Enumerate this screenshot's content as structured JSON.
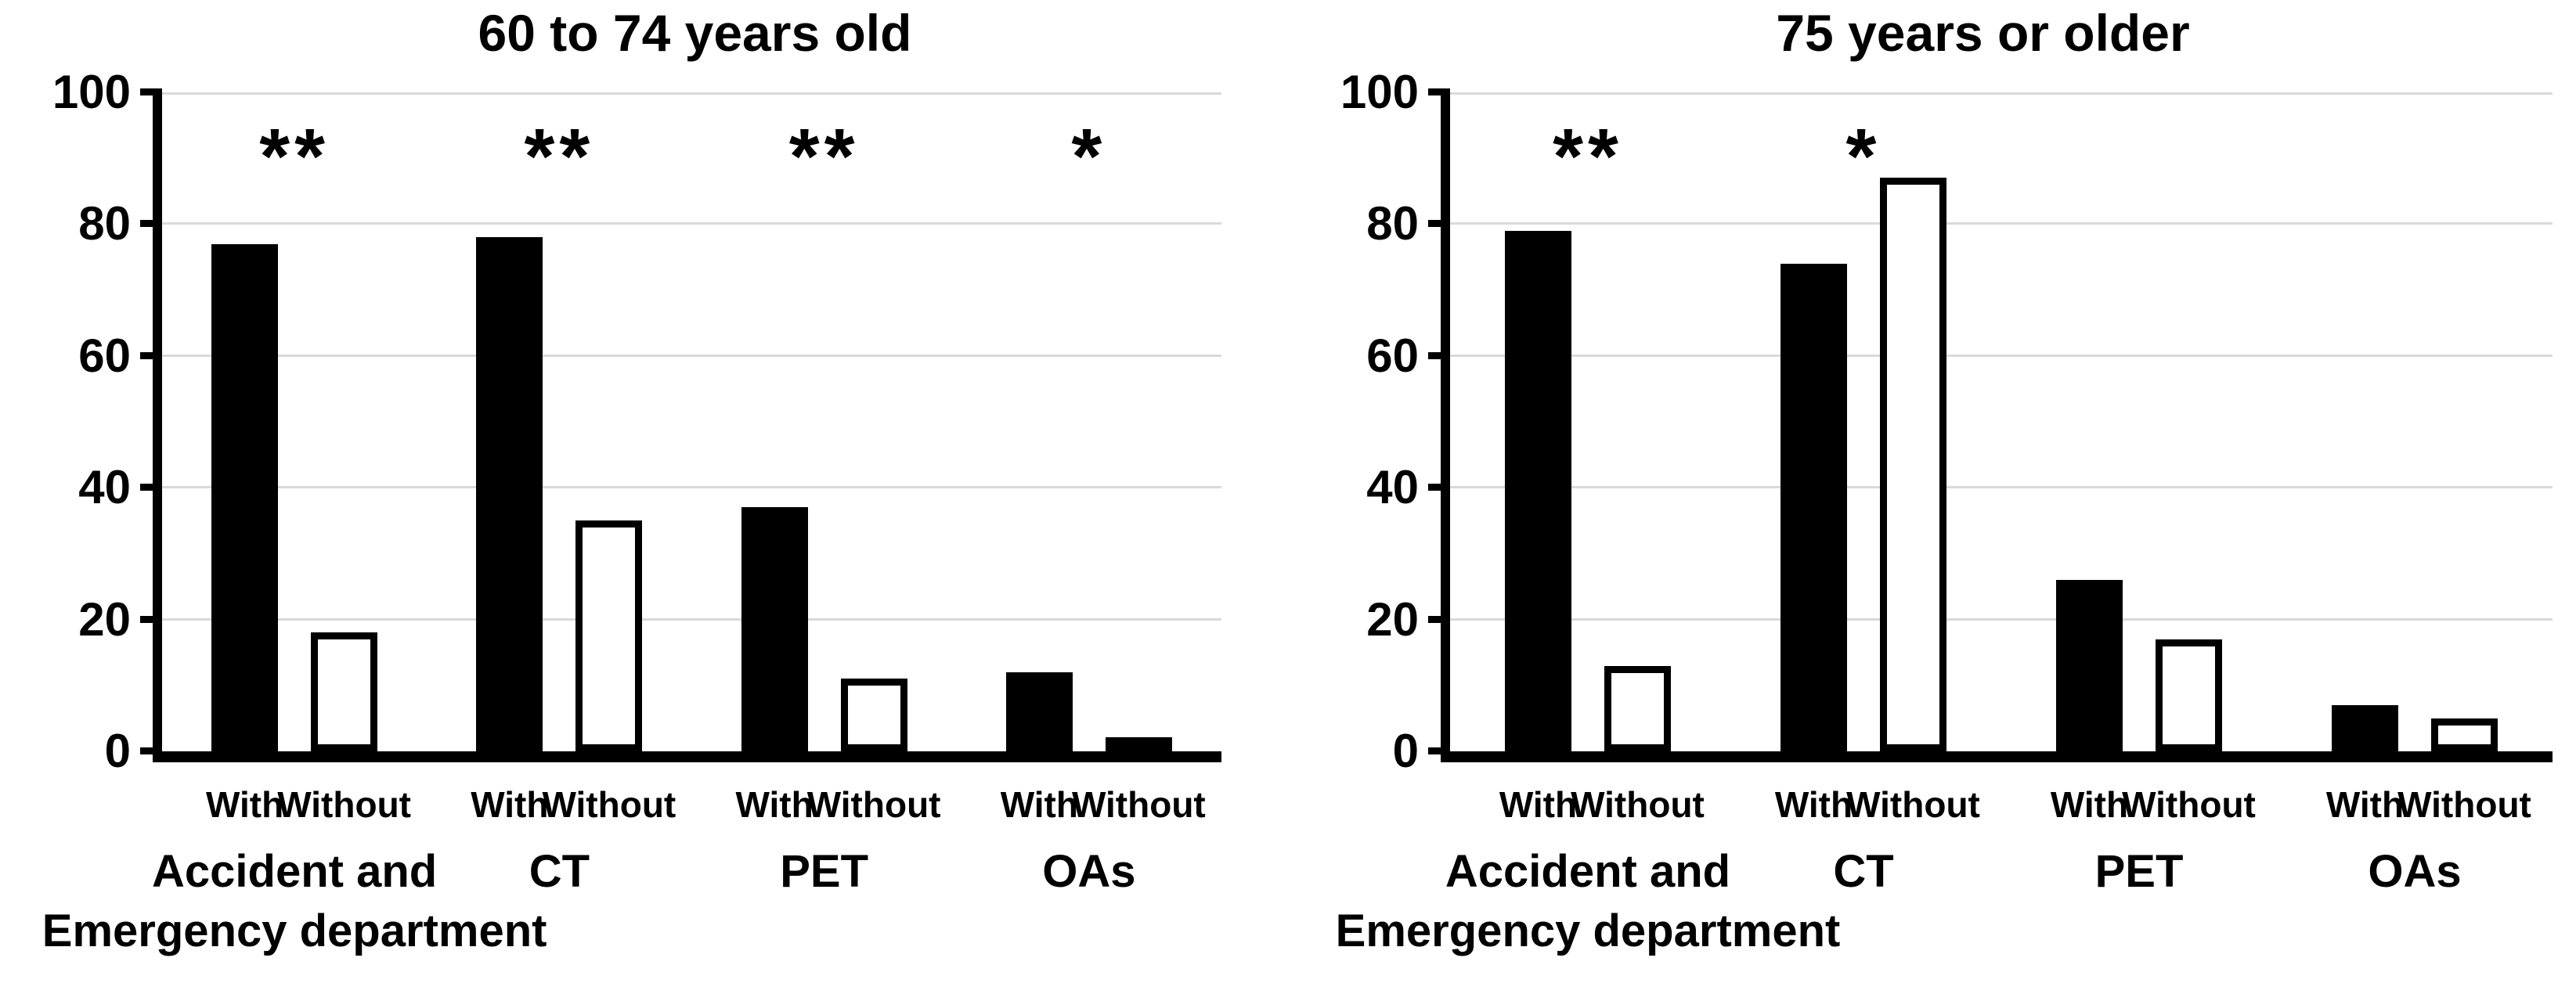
{
  "figure": {
    "background": "#ffffff",
    "text_color": "#000000",
    "gridline_color": "#d9d9d9"
  },
  "chart_data": [
    {
      "type": "bar",
      "title": "60 to 74 years old",
      "xlabel": "",
      "ylabel": "",
      "ylim": [
        0,
        100
      ],
      "yticks": [
        0,
        20,
        40,
        60,
        80,
        100
      ],
      "grid": "horizontal",
      "legend": "none",
      "categories": [
        "Accident and\nEmergency department",
        "CT",
        "PET",
        "OAs"
      ],
      "bar_tick_labels": [
        "With",
        "Without"
      ],
      "series": [
        {
          "name": "With",
          "fill": "#000000",
          "values": [
            77,
            78,
            37,
            12
          ]
        },
        {
          "name": "Without",
          "fill": "#ffffff",
          "stroke": "#000000",
          "values": [
            18,
            35,
            11,
            2
          ]
        }
      ],
      "significance": [
        "**",
        "**",
        "**",
        "*"
      ]
    },
    {
      "type": "bar",
      "title": "75 years or older",
      "xlabel": "",
      "ylabel": "",
      "ylim": [
        0,
        100
      ],
      "yticks": [
        0,
        20,
        40,
        60,
        80,
        100
      ],
      "grid": "horizontal",
      "legend": "none",
      "categories": [
        "Accident and\nEmergency department",
        "CT",
        "PET",
        "OAs"
      ],
      "bar_tick_labels": [
        "With",
        "Without"
      ],
      "series": [
        {
          "name": "With",
          "fill": "#000000",
          "values": [
            79,
            74,
            26,
            7
          ]
        },
        {
          "name": "Without",
          "fill": "#ffffff",
          "stroke": "#000000",
          "values": [
            13,
            87,
            17,
            5
          ]
        }
      ],
      "significance": [
        "**",
        "*",
        "",
        ""
      ]
    }
  ]
}
